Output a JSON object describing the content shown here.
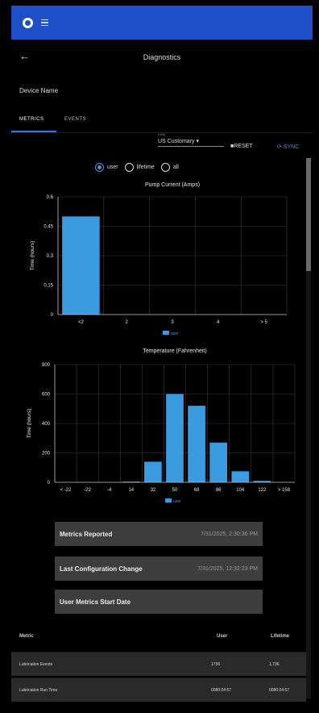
{
  "app": {
    "logo_icon": "logo-icon",
    "menu_icon": "menu-icon"
  },
  "header": {
    "title": "Diagnostics"
  },
  "device": {
    "name": "Device Name"
  },
  "tabs": [
    {
      "label": "METRICS",
      "active": true
    },
    {
      "label": "EVENTS",
      "active": false
    }
  ],
  "toolbar": {
    "units_label": "Units",
    "units_value": "US Customary ▾",
    "reset_label": "RESET",
    "sync_label": "SYNC"
  },
  "range_options": [
    {
      "label": "user",
      "checked": true
    },
    {
      "label": "lifetime",
      "checked": false
    },
    {
      "label": "all",
      "checked": false
    }
  ],
  "chart_data": [
    {
      "type": "bar",
      "title": "Pump Current (Amps)",
      "ylabel": "Time (hours)",
      "categories": [
        "<2",
        "2",
        "3",
        "4",
        "> 5"
      ],
      "values": [
        0.5,
        0,
        0,
        0,
        0
      ],
      "yticks": [
        "0",
        "0.15",
        "0.3",
        "0.45",
        "0.6"
      ],
      "ylim": [
        0,
        0.6
      ],
      "legend": "user",
      "color": "#3a9be0",
      "grid": true
    },
    {
      "type": "bar",
      "title": "Temperature (Fahrenheit)",
      "ylabel": "Time (hours)",
      "categories": [
        "< -22",
        "-22",
        "-4",
        "14",
        "32",
        "50",
        "68",
        "86",
        "104",
        "122",
        "> 158"
      ],
      "values": [
        0,
        0,
        0,
        5,
        140,
        600,
        520,
        270,
        75,
        10,
        0
      ],
      "yticks": [
        "0",
        "200",
        "400",
        "600",
        "800"
      ],
      "ylim": [
        0,
        800
      ],
      "legend": "user",
      "color": "#3a9be0",
      "grid": true
    }
  ],
  "info_buttons": [
    {
      "label": "Metrics Reported",
      "value": "7/31/2025, 2:30:36 PM"
    },
    {
      "label": "Last Configuration Change",
      "value": "7/31/2025, 12:32:23 PM"
    },
    {
      "label": "User Metrics Start Date",
      "value": ""
    }
  ],
  "metrics_table": {
    "headers": {
      "metric": "Metric",
      "user": "User",
      "lifetime": "Lifetime"
    },
    "rows": [
      {
        "metric": "Lubrication Events",
        "user": "1736",
        "lifetime": "1,736"
      },
      {
        "metric": "Lubrication Run Time",
        "user": "0080:04:57",
        "lifetime": "0080:04:57"
      }
    ]
  }
}
